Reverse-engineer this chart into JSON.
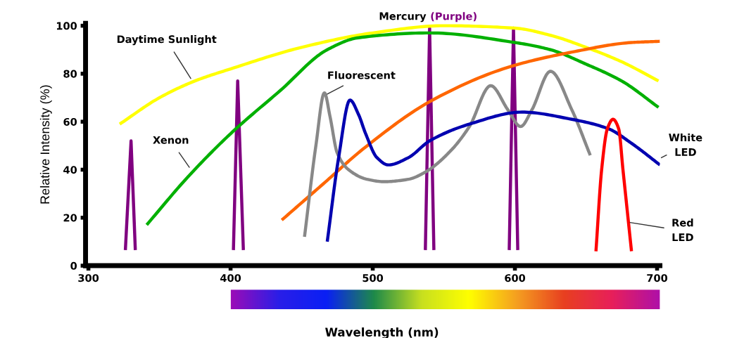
{
  "chart_data": {
    "type": "line",
    "xlabel": "Wavelength (nm)",
    "ylabel": "Relative Intensity (%)",
    "xlim": [
      298,
      702
    ],
    "ylim": [
      0,
      101
    ],
    "xticks": [
      300,
      400,
      500,
      600,
      700
    ],
    "yticks": [
      0,
      20,
      40,
      60,
      80,
      100
    ],
    "grid": false,
    "legend": false,
    "line_style": "solid",
    "annotations": [
      "(Purple)"
    ],
    "series": [
      {
        "name": "Mercury",
        "color": "#800080",
        "x": [
          326,
          330,
          333,
          360,
          402,
          405,
          409,
          470,
          537,
          540,
          543,
          570,
          596,
          599,
          602
        ],
        "values": [
          6.5,
          52,
          6.5,
          null,
          6.5,
          77,
          6.5,
          null,
          6.5,
          99,
          6.5,
          null,
          6.5,
          99,
          6.5
        ]
      },
      {
        "name": "Daytime Sunlight",
        "color": "#ffff00",
        "x": [
          322,
          350,
          375,
          400,
          450,
          500,
          550,
          600,
          625,
          650,
          675,
          701
        ],
        "values": [
          59,
          70,
          77,
          82,
          91,
          97,
          100,
          99,
          96,
          91,
          85,
          77
        ]
      },
      {
        "name": "Xenon",
        "color": "#00b000",
        "x": [
          341,
          370,
          400,
          435,
          468,
          490,
          540,
          600,
          625,
          650,
          675,
          701
        ],
        "values": [
          17,
          37,
          55,
          73,
          90,
          95,
          97,
          93,
          90,
          84,
          77,
          66
        ]
      },
      {
        "color": "#ff6600",
        "x": [
          436,
          465,
          494,
          542,
          597,
          640,
          682,
          702
        ],
        "values": [
          19,
          34,
          49,
          69,
          83,
          89,
          93,
          93.5
        ]
      },
      {
        "name": "Fluorescent",
        "color": "#888888",
        "x": [
          452,
          460,
          466,
          470,
          475,
          483,
          496,
          508,
          525,
          537,
          555,
          568,
          583,
          595,
          604,
          612,
          625,
          640,
          653
        ],
        "values": [
          12,
          50,
          72,
          62,
          47,
          40,
          36,
          35,
          36,
          39,
          48,
          58,
          75,
          65,
          58,
          65,
          81,
          65,
          46
        ]
      },
      {
        "name": "White LED",
        "color": "#0000b0",
        "x": [
          468,
          476,
          484,
          490,
          495,
          503,
          511,
          525,
          540,
          568,
          605,
          640,
          666,
          682,
          702
        ],
        "values": [
          10,
          45,
          69,
          63,
          55,
          45,
          42,
          45,
          52,
          59,
          64,
          61,
          57,
          51,
          42
        ]
      },
      {
        "name": "Red LED",
        "color": "#ff0000",
        "x": [
          657,
          661,
          665,
          669,
          673,
          676,
          682
        ],
        "values": [
          6,
          40,
          57,
          61,
          57,
          40,
          6
        ]
      }
    ]
  }
}
